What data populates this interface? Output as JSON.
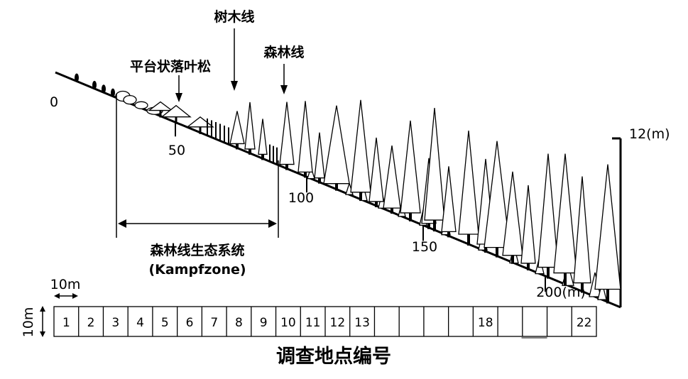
{
  "labels": {
    "tree_line": "树木线",
    "forest_line": "森林线",
    "table_larch": "平台状落叶松",
    "ecotone_cn": "森林线生态系统",
    "ecotone_en": "(Kampfzone)",
    "height_scale": "12(m)",
    "ten_m_h": "10m",
    "ten_m_v": "10m",
    "bottom_title": "调查地点编号"
  },
  "distance_ticks": [
    {
      "label": "0"
    },
    {
      "label": "50"
    },
    {
      "label": "100"
    },
    {
      "label": "150"
    },
    {
      "label": "200(m)"
    }
  ],
  "plot_numbers": [
    "1",
    "2",
    "3",
    "4",
    "5",
    "6",
    "7",
    "8",
    "9",
    "10",
    "11",
    "12",
    "13",
    "",
    "",
    "",
    "",
    "18",
    "",
    "",
    "",
    "22"
  ],
  "colors": {
    "ink": "#000000",
    "background": "#ffffff"
  }
}
